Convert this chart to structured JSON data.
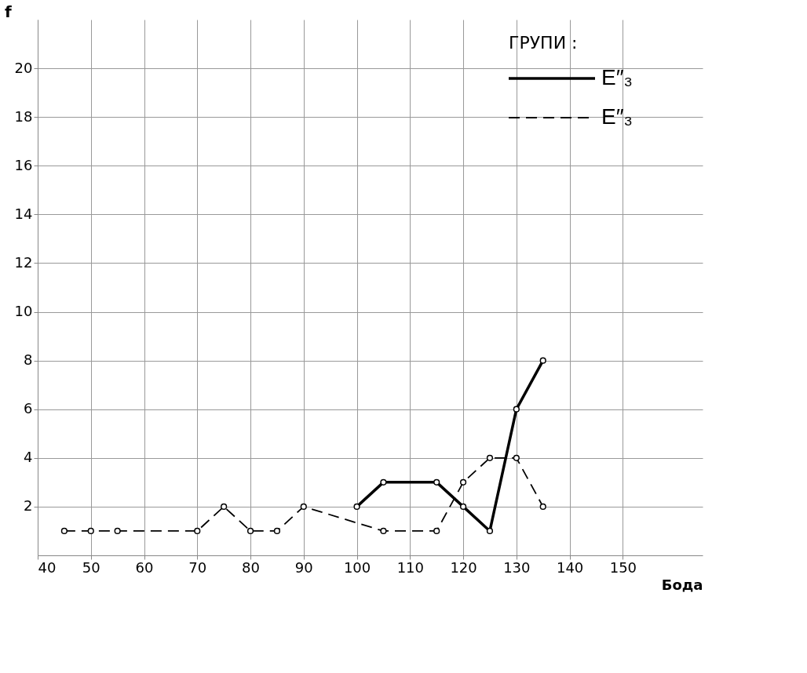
{
  "chart_data": {
    "type": "line",
    "xlabel": "Бода",
    "ylabel": "f",
    "legend_title": "ГРУПИ :",
    "xlim": [
      40,
      165
    ],
    "xticks": [
      40,
      50,
      60,
      70,
      80,
      90,
      100,
      110,
      120,
      130,
      140,
      150
    ],
    "ylim": [
      0,
      22
    ],
    "yticks": [
      2,
      4,
      6,
      8,
      10,
      12,
      14,
      16,
      18,
      20
    ],
    "grid": true,
    "legend": "top right",
    "marker": "circle",
    "series": [
      {
        "name": "E″₃",
        "color": "#000000",
        "line_style": "solid",
        "x": [
          100,
          105,
          115,
          120,
          125,
          130,
          135
        ],
        "values": [
          2,
          3,
          3,
          2,
          1,
          6,
          8
        ]
      },
      {
        "name": "E″₃",
        "color": "#000000",
        "line_style": "dashed",
        "x": [
          45,
          50,
          55,
          70,
          75,
          80,
          85,
          90,
          105,
          115,
          120,
          125,
          130,
          135
        ],
        "values": [
          1,
          1,
          1,
          1,
          2,
          1,
          1,
          2,
          1,
          1,
          3,
          4,
          4,
          2
        ]
      }
    ]
  }
}
